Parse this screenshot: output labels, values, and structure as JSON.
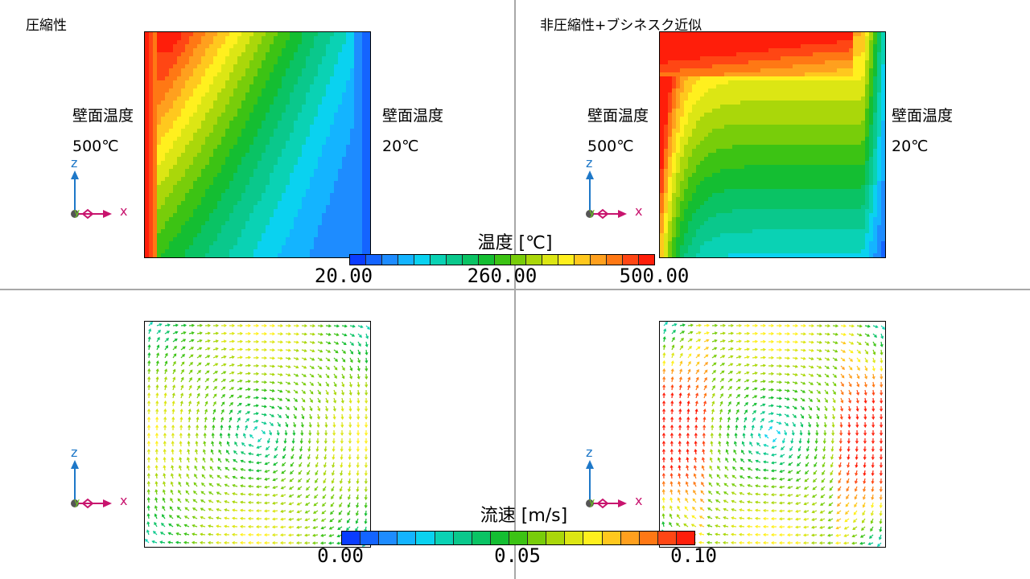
{
  "panels": {
    "top_left": {
      "title": "圧縮性",
      "left_wall_label": "壁面温度",
      "left_wall_value": "500℃",
      "right_wall_label": "壁面温度",
      "right_wall_value": "20℃"
    },
    "top_right": {
      "title": "非圧縮性+ブシネスク近似",
      "left_wall_label": "壁面温度",
      "left_wall_value": "500℃",
      "right_wall_label": "壁面温度",
      "right_wall_value": "20℃"
    }
  },
  "axes": {
    "z": "z",
    "x": "x",
    "y": "y"
  },
  "temperature_legend": {
    "title": "温度 [℃]",
    "ticks": [
      "20.00",
      "260.00",
      "500.00"
    ]
  },
  "velocity_legend": {
    "title": "流速 [m/s]",
    "ticks": [
      "0.00",
      "0.05",
      "0.10"
    ]
  },
  "colormap": [
    "#0a3cff",
    "#1464ff",
    "#1e8cff",
    "#14b4ff",
    "#0ad2f0",
    "#0ad2b4",
    "#0ac88c",
    "#0ac364",
    "#14be32",
    "#3cc314",
    "#78cd0a",
    "#aad70a",
    "#dce614",
    "#fff01e",
    "#ffc81e",
    "#ffa01e",
    "#ff7814",
    "#ff4614",
    "#ff1e0a"
  ],
  "colors": {
    "axis_z": "#1e78c8",
    "axis_x": "#c8146e",
    "axis_y": "#6ec81e",
    "divider": "#a8a8a8"
  }
}
